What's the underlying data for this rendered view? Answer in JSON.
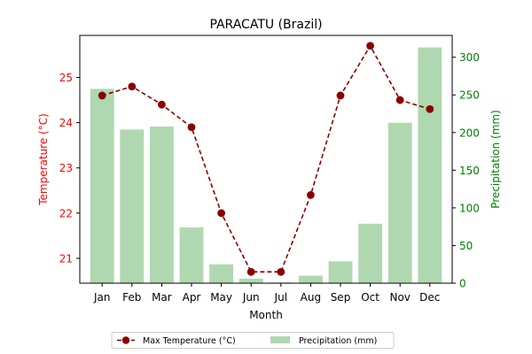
{
  "chart_data": {
    "type": "bar",
    "title": "PARACATU (Brazil)",
    "xlabel": "Month",
    "ylabel_left": "Temperature (°C)",
    "ylabel_right": "Precipitation (mm)",
    "categories": [
      "Jan",
      "Feb",
      "Mar",
      "Apr",
      "May",
      "Jun",
      "Jul",
      "Aug",
      "Sep",
      "Oct",
      "Nov",
      "Dec"
    ],
    "series": [
      {
        "name": "Max Temperature (°C)",
        "type": "line",
        "axis": "left",
        "color": "#8b0000",
        "values": [
          24.6,
          24.8,
          24.4,
          23.9,
          22.0,
          20.7,
          20.7,
          22.4,
          24.6,
          25.7,
          24.5,
          24.3
        ]
      },
      {
        "name": "Precipitation (mm)",
        "type": "bar",
        "axis": "right",
        "color": "#b0d8b0",
        "values": [
          258,
          204,
          208,
          74,
          25,
          6,
          1,
          10,
          29,
          79,
          213,
          313
        ]
      }
    ],
    "ylim_left": [
      20.45,
      25.93
    ],
    "yticks_left": [
      21,
      22,
      23,
      24,
      25
    ],
    "ylim_right": [
      0,
      329
    ],
    "yticks_right": [
      0,
      50,
      100,
      150,
      200,
      250,
      300
    ],
    "left_axis_color": "#ff0000",
    "right_axis_color": "#008000",
    "grid": false,
    "legend_position": "bottom-center"
  }
}
